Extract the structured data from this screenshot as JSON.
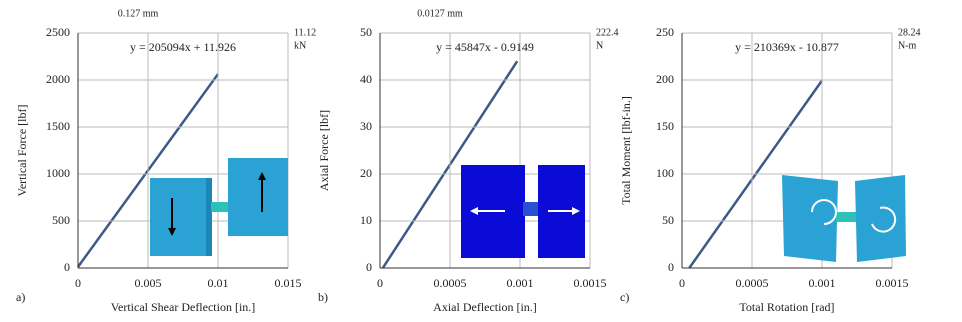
{
  "chart_data": [
    {
      "type": "line",
      "panel_label": "a)",
      "xlabel": "Vertical Shear Deflection [in.]",
      "ylabel": "Vertical Force [lbf]",
      "equation": "y = 205094x + 11.926",
      "top_note": "0.127 mm",
      "right_label": [
        "11.12",
        "kN"
      ],
      "xlim": [
        0,
        0.015
      ],
      "xticks": [
        0,
        0.005,
        0.01,
        0.015
      ],
      "ylim": [
        0,
        2500
      ],
      "yticks": [
        0,
        500,
        1000,
        1500,
        2000,
        2500
      ],
      "grid": true,
      "x": [
        0,
        0.01
      ],
      "series": [
        {
          "color": "#3d5a86",
          "values": [
            12,
            2063
          ]
        }
      ]
    },
    {
      "type": "line",
      "panel_label": "b)",
      "xlabel": "Axial Deflection [in.]",
      "ylabel": "Axial Force [lbf]",
      "equation": "y = 45847x - 0.9149",
      "top_note": "0.0127 mm",
      "right_label": [
        "222.4",
        "N"
      ],
      "xlim": [
        0,
        0.0015
      ],
      "xticks": [
        0,
        0.0005,
        0.001,
        0.0015
      ],
      "ylim": [
        0,
        50
      ],
      "yticks": [
        0,
        10,
        20,
        30,
        40,
        50
      ],
      "grid": true,
      "x": [
        2e-05,
        0.00098
      ],
      "series": [
        {
          "color": "#3d5a86",
          "values": [
            0,
            44
          ]
        }
      ]
    },
    {
      "type": "line",
      "panel_label": "c)",
      "xlabel": "Total Rotation [rad]",
      "ylabel": "Total Moment [lbf-in.]",
      "equation": "y = 210369x - 10.877",
      "right_label": [
        "28.24",
        "N-m"
      ],
      "xlim": [
        0,
        0.0015
      ],
      "xticks": [
        0,
        0.0005,
        0.001,
        0.0015
      ],
      "ylim": [
        0,
        250
      ],
      "yticks": [
        0,
        50,
        100,
        150,
        200,
        250
      ],
      "grid": true,
      "x": [
        5.2e-05,
        0.001
      ],
      "series": [
        {
          "color": "#3d5a86",
          "values": [
            0,
            199.5
          ]
        }
      ]
    }
  ]
}
